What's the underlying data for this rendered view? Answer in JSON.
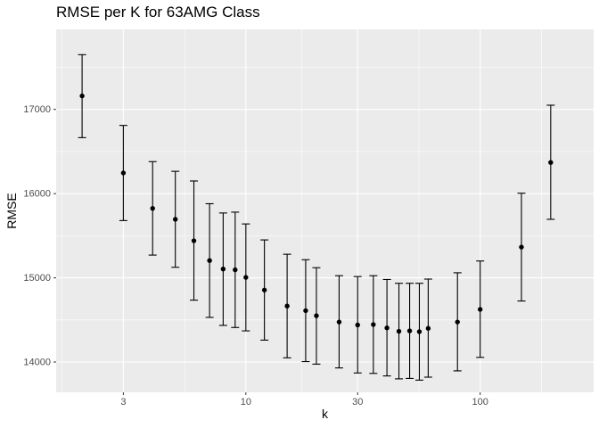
{
  "chart_data": {
    "type": "scatter",
    "title": "RMSE per K for 63AMG Class",
    "xlabel": "k",
    "ylabel": "RMSE",
    "x_scale": "log10",
    "xlim": [
      1.55,
      305
    ],
    "ylim": [
      13640,
      17950
    ],
    "x_ticks": [
      3,
      10,
      30,
      100
    ],
    "x_tick_labels": [
      "3",
      "10",
      "30",
      "100"
    ],
    "y_ticks": [
      14000,
      15000,
      16000,
      17000
    ],
    "y_tick_labels": [
      "14000",
      "15000",
      "16000",
      "17000"
    ],
    "grid": true,
    "legend": "none",
    "colors": {
      "panel": "#EBEBEB",
      "grid": "#FFFFFF",
      "point": "#000000",
      "text": "#4D4D4D"
    },
    "points": [
      {
        "x": 2,
        "y": 17160,
        "ymin": 16665,
        "ymax": 17650
      },
      {
        "x": 3,
        "y": 16245,
        "ymin": 15680,
        "ymax": 16810
      },
      {
        "x": 4,
        "y": 15825,
        "ymin": 15270,
        "ymax": 16380
      },
      {
        "x": 5,
        "y": 15695,
        "ymin": 15125,
        "ymax": 16265
      },
      {
        "x": 6,
        "y": 15440,
        "ymin": 14735,
        "ymax": 16150
      },
      {
        "x": 7,
        "y": 15205,
        "ymin": 14530,
        "ymax": 15880
      },
      {
        "x": 8,
        "y": 15105,
        "ymin": 14435,
        "ymax": 15770
      },
      {
        "x": 9,
        "y": 15095,
        "ymin": 14410,
        "ymax": 15780
      },
      {
        "x": 10,
        "y": 15005,
        "ymin": 14370,
        "ymax": 15640
      },
      {
        "x": 12,
        "y": 14855,
        "ymin": 14260,
        "ymax": 15450
      },
      {
        "x": 15,
        "y": 14665,
        "ymin": 14050,
        "ymax": 15280
      },
      {
        "x": 18,
        "y": 14610,
        "ymin": 14005,
        "ymax": 15215
      },
      {
        "x": 20,
        "y": 14550,
        "ymin": 13975,
        "ymax": 15120
      },
      {
        "x": 25,
        "y": 14475,
        "ymin": 13930,
        "ymax": 15025
      },
      {
        "x": 30,
        "y": 14440,
        "ymin": 13870,
        "ymax": 15015
      },
      {
        "x": 35,
        "y": 14445,
        "ymin": 13865,
        "ymax": 15025
      },
      {
        "x": 40,
        "y": 14405,
        "ymin": 13835,
        "ymax": 14980
      },
      {
        "x": 45,
        "y": 14365,
        "ymin": 13800,
        "ymax": 14935
      },
      {
        "x": 50,
        "y": 14370,
        "ymin": 13805,
        "ymax": 14935
      },
      {
        "x": 55,
        "y": 14360,
        "ymin": 13785,
        "ymax": 14935
      },
      {
        "x": 60,
        "y": 14400,
        "ymin": 13820,
        "ymax": 14985
      },
      {
        "x": 80,
        "y": 14475,
        "ymin": 13895,
        "ymax": 15060
      },
      {
        "x": 100,
        "y": 14625,
        "ymin": 14055,
        "ymax": 15200
      },
      {
        "x": 150,
        "y": 15365,
        "ymin": 14725,
        "ymax": 16005
      },
      {
        "x": 200,
        "y": 16370,
        "ymin": 15695,
        "ymax": 17050
      }
    ]
  }
}
